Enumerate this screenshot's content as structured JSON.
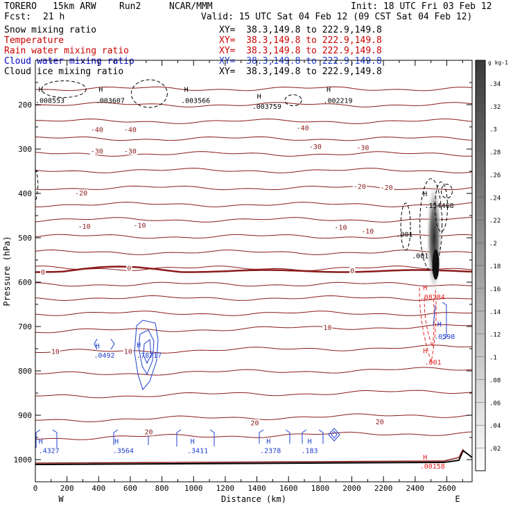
{
  "header": {
    "model": "TORERO",
    "resolution": "15km ARW",
    "run": "Run2",
    "org": "NCAR/MMM",
    "init": "Init: 18 UTC Fri 03 Feb 12",
    "fcst_label": "Fcst:",
    "fcst_value": "21 h",
    "valid": "Valid: 15 UTC Sat 04 Feb 12 (09 CST Sat 04 Feb 12)"
  },
  "legend": [
    {
      "label": "Snow mixing ratio",
      "xy": "XY=  38.3,149.8 to 222.9,149.8",
      "color": "#000000"
    },
    {
      "label": "Temperature",
      "xy": "XY=  38.3,149.8 to 222.9,149.8",
      "color": "#cc0000"
    },
    {
      "label": "Rain water mixing ratio",
      "xy": "XY=  38.3,149.8 to 222.9,149.8",
      "color": "#cc0000"
    },
    {
      "label": "Cloud water mixing ratio",
      "xy": "XY=  38.3,149.8 to 222.9,149.8",
      "color": "#0000cc"
    },
    {
      "label": "Cloud ice mixing ratio",
      "xy": "XY=  38.3,149.8 to 222.9,149.8",
      "color": "#000000"
    }
  ],
  "chart_data": {
    "type": "cross-section",
    "xlabel": "Distance (km)",
    "ylabel": "Pressure (hPa)",
    "xlim": [
      0,
      2760
    ],
    "ylim": [
      1050,
      100
    ],
    "x_ticks": [
      0,
      200,
      400,
      600,
      800,
      1000,
      1200,
      1400,
      1600,
      1800,
      2000,
      2200,
      2400,
      2600
    ],
    "y_ticks": [
      200,
      300,
      400,
      500,
      600,
      700,
      800,
      900,
      1000
    ],
    "west_label": "W",
    "east_label": "E",
    "colorbar": {
      "units": "g kg-1",
      "ticks": [
        ".02",
        ".04",
        ".06",
        ".08",
        ".1",
        ".12",
        ".14",
        ".16",
        ".18",
        ".2",
        ".22",
        ".24",
        ".26",
        ".28",
        ".3",
        ".32",
        ".34"
      ],
      "values": [
        0.02,
        0.04,
        0.06,
        0.08,
        0.1,
        0.12,
        0.14,
        0.16,
        0.18,
        0.2,
        0.22,
        0.24,
        0.26,
        0.28,
        0.3,
        0.32,
        0.34
      ]
    },
    "temperature_labels": [
      {
        "text": "-40",
        "x": 350,
        "p": 262
      },
      {
        "text": "-40",
        "x": 560,
        "p": 262
      },
      {
        "text": "-40",
        "x": 1650,
        "p": 258
      },
      {
        "text": "-30",
        "x": 350,
        "p": 310
      },
      {
        "text": "-30",
        "x": 560,
        "p": 310
      },
      {
        "text": "-30",
        "x": 1730,
        "p": 300
      },
      {
        "text": "-30",
        "x": 2030,
        "p": 302
      },
      {
        "text": "-20",
        "x": 250,
        "p": 405
      },
      {
        "text": "-20",
        "x": 2010,
        "p": 390
      },
      {
        "text": "-20",
        "x": 2180,
        "p": 392
      },
      {
        "text": "-10",
        "x": 270,
        "p": 480
      },
      {
        "text": "-10",
        "x": 620,
        "p": 477
      },
      {
        "text": "-10",
        "x": 1890,
        "p": 482
      },
      {
        "text": "-10",
        "x": 2060,
        "p": 491
      },
      {
        "text": "0",
        "x": 35,
        "p": 583
      },
      {
        "text": "0",
        "x": 580,
        "p": 574
      },
      {
        "text": "0",
        "x": 1990,
        "p": 580
      },
      {
        "text": "10",
        "x": 1820,
        "p": 708
      },
      {
        "text": "10",
        "x": 100,
        "p": 762
      },
      {
        "text": "10",
        "x": 560,
        "p": 762
      },
      {
        "text": "20",
        "x": 690,
        "p": 943
      },
      {
        "text": "20",
        "x": 1360,
        "p": 923
      },
      {
        "text": "20",
        "x": 2150,
        "p": 920
      }
    ],
    "snow_maxima": [
      {
        "text": "H",
        "x": 20,
        "p": 171
      },
      {
        "text": ".008553",
        "x": 0,
        "p": 196
      },
      {
        "text": "H",
        "x": 400,
        "p": 171
      },
      {
        "text": ".003607",
        "x": 380,
        "p": 196
      },
      {
        "text": "H",
        "x": 940,
        "p": 171
      },
      {
        "text": ".003566",
        "x": 920,
        "p": 196
      },
      {
        "text": "H",
        "x": 1400,
        "p": 187
      },
      {
        "text": ".003759",
        "x": 1370,
        "p": 209
      },
      {
        "text": "H",
        "x": 1840,
        "p": 171
      },
      {
        "text": ".002219",
        "x": 1820,
        "p": 196
      }
    ],
    "ice_labels": [
      {
        "text": "H",
        "x": 2450,
        "p": 406
      },
      {
        "text": ".154468",
        "x": 2460,
        "p": 433
      },
      {
        "text": ".001",
        "x": 2280,
        "p": 498
      },
      {
        "text": ".001",
        "x": 2380,
        "p": 546
      }
    ],
    "rain_labels": [
      {
        "text": "H",
        "x": 2450,
        "p": 618
      },
      {
        "text": ".08784",
        "x": 2430,
        "p": 639
      },
      {
        "text": "H",
        "x": 2450,
        "p": 760
      },
      {
        "text": ".001",
        "x": 2460,
        "p": 786
      },
      {
        "text": "H",
        "x": 2450,
        "p": 1000
      },
      {
        "text": ".00158",
        "x": 2430,
        "p": 1020
      }
    ],
    "cloud_water_labels": [
      {
        "text": "H",
        "x": 380,
        "p": 749
      },
      {
        "text": ".0492",
        "x": 370,
        "p": 770
      },
      {
        "text": "H",
        "x": 640,
        "p": 747
      },
      {
        "text": ".78717",
        "x": 640,
        "p": 770
      },
      {
        "text": "H",
        "x": 2540,
        "p": 700
      },
      {
        "text": ".0598",
        "x": 2520,
        "p": 728
      },
      {
        "text": "H",
        "x": 20,
        "p": 964
      },
      {
        "text": ".4327",
        "x": 20,
        "p": 985
      },
      {
        "text": "H",
        "x": 500,
        "p": 964
      },
      {
        "text": ".3564",
        "x": 490,
        "p": 985
      },
      {
        "text": "H",
        "x": 980,
        "p": 964
      },
      {
        "text": ".3411",
        "x": 960,
        "p": 985
      },
      {
        "text": "H",
        "x": 1460,
        "p": 964
      },
      {
        "text": ".2378",
        "x": 1420,
        "p": 985
      },
      {
        "text": "H",
        "x": 1720,
        "p": 964
      },
      {
        "text": ".183",
        "x": 1680,
        "p": 985
      }
    ]
  },
  "colors": {
    "temperature": "#8b1a1a",
    "rain": "#e02020",
    "cloud_water": "#1f3fd0",
    "snow": "#000000",
    "axis": "#000000"
  }
}
